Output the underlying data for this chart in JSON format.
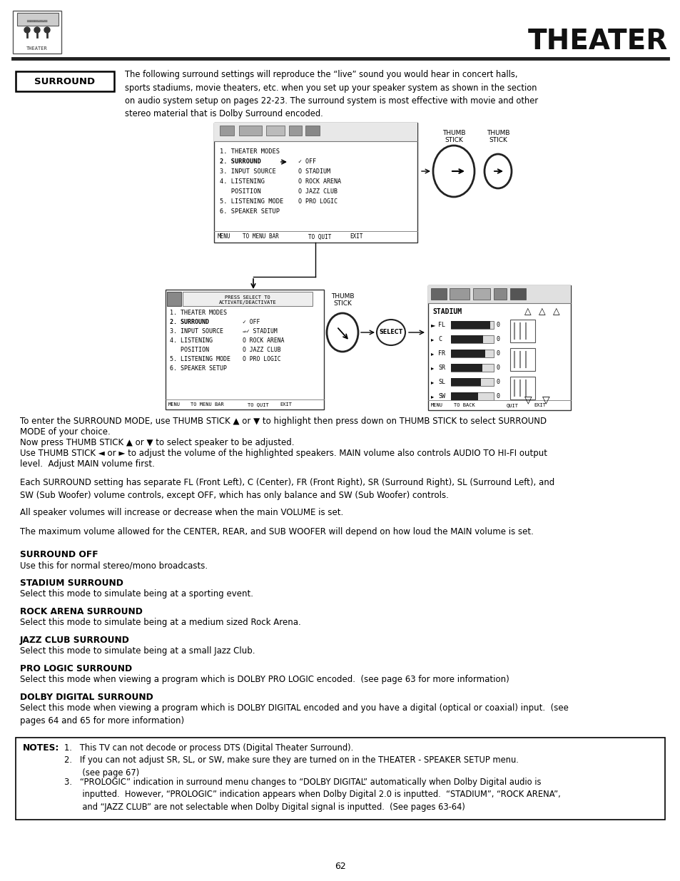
{
  "page_title": "THEATER",
  "page_number": "62",
  "section_label": "SURROUND",
  "bg_color": "#ffffff",
  "text_color": "#000000",
  "surround_intro": "The following surround settings will reproduce the “live” sound you would hear in concert halls,\nsports stadiums, movie theaters, etc. when you set up your speaker system as shown in the section\non audio system setup on pages 22-23. The surround system is most effective with movie and other\nstereo material that is Dolby Surround encoded.",
  "instruction_lines": [
    "To enter the SURROUND MODE, use THUMB STICK ▲ or ▼ to highlight then press down on THUMB STICK to select SURROUND",
    "MODE of your choice.",
    "Now press THUMB STICK ▲ or ▼ to select speaker to be adjusted.",
    "Use THUMB STICK ◄ or ► to adjust the volume of the highlighted speakers. MAIN volume also controls AUDIO TO HI-FI output",
    "level.  Adjust MAIN volume first."
  ],
  "body_paragraphs": [
    "Each SURROUND setting has separate FL (Front Left), C (Center), FR (Front Right), SR (Surround Right), SL (Surround Left), and\nSW (Sub Woofer) volume controls, except OFF, which has only balance and SW (Sub Woofer) controls.",
    "All speaker volumes will increase or decrease when the main VOLUME is set.",
    "The maximum volume allowed for the CENTER, REAR, and SUB WOOFER will depend on how loud the MAIN volume is set."
  ],
  "sections": [
    {
      "heading": "SURROUND OFF",
      "body": "Use this for normal stereo/mono broadcasts."
    },
    {
      "heading": "STADIUM SURROUND",
      "body": "Select this mode to simulate being at a sporting event."
    },
    {
      "heading": "ROCK ARENA SURROUND",
      "body": "Select this mode to simulate being at a medium sized Rock Arena."
    },
    {
      "heading": "JAZZ CLUB SURROUND",
      "body": "Select this mode to simulate being at a small Jazz Club."
    },
    {
      "heading": "PRO LOGIC SURROUND",
      "body": "Select this mode when viewing a program which is DOLBY PRO LOGIC encoded.  (see page 63 for more information)"
    },
    {
      "heading": "DOLBY DIGITAL SURROUND",
      "body": "Select this mode when viewing a program which is DOLBY DIGITAL encoded and you have a digital (optical or coaxial) input.  (see\npages 64 and 65 for more information)"
    }
  ],
  "notes_label": "NOTES:",
  "notes_items": [
    "1.   This TV can not decode or process DTS (Digital Theater Surround).",
    "2.   If you can not adjust SR, SL, or SW, make sure they are turned on in the THEATER - SPEAKER SETUP menu.\n       (see page 67)",
    "3.   “PROLOGIC” indication in surround menu changes to “DOLBY DIGITAL” automatically when Dolby Digital audio is\n       inputted.  However, “PROLOGIC” indication appears when Dolby Digital 2.0 is inputted.  “STADIUM”, “ROCK ARENA”,\n       and “JAZZ CLUB” are not selectable when Dolby Digital signal is inputted.  (See pages 63-64)"
  ]
}
